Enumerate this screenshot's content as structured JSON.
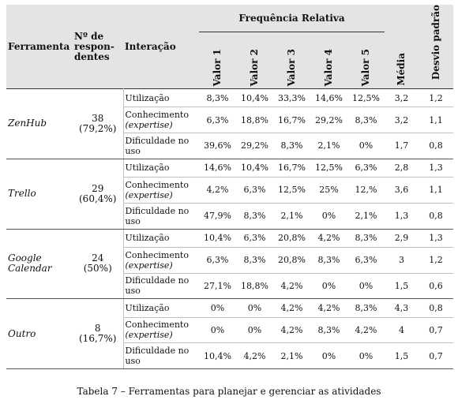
{
  "header": {
    "ferramenta": "Ferramenta",
    "respondentes": "Nº de respon-dentes",
    "interacao": "Interação",
    "frequencia": "Frequência Relativa",
    "valores": [
      "Valor 1",
      "Valor 2",
      "Valor 3",
      "Valor 4",
      "Valor 5"
    ],
    "media": "Média",
    "desvio": "Desvio padrão"
  },
  "interactions": {
    "utilizacao": "Utilização",
    "conhecimento": "Conhecimento",
    "expertise": "(expertise)",
    "dificuldade": "Dificuldade no uso"
  },
  "groups": [
    {
      "tool": "ZenHub",
      "count": "38",
      "pct": "(79,2%)",
      "rows": [
        [
          "8,3%",
          "10,4%",
          "33,3%",
          "14,6%",
          "12,5%",
          "3,2",
          "1,2"
        ],
        [
          "6,3%",
          "18,8%",
          "16,7%",
          "29,2%",
          "8,3%",
          "3,2",
          "1,1"
        ],
        [
          "39,6%",
          "29,2%",
          "8,3%",
          "2,1%",
          "0%",
          "1,7",
          "0,8"
        ]
      ]
    },
    {
      "tool": "Trello",
      "count": "29",
      "pct": "(60,4%)",
      "rows": [
        [
          "14,6%",
          "10,4%",
          "16,7%",
          "12,5%",
          "6,3%",
          "2,8",
          "1,3"
        ],
        [
          "4,2%",
          "6,3%",
          "12,5%",
          "25%",
          "12,%",
          "3,6",
          "1,1"
        ],
        [
          "47,9%",
          "8,3%",
          "2,1%",
          "0%",
          "2,1%",
          "1,3",
          "0,8"
        ]
      ]
    },
    {
      "tool": "Google Calendar",
      "count": "24",
      "pct": "(50%)",
      "rows": [
        [
          "10,4%",
          "6,3%",
          "20,8%",
          "4,2%",
          "8,3%",
          "2,9",
          "1,3"
        ],
        [
          "6,3%",
          "8,3%",
          "20,8%",
          "8,3%",
          "6,3%",
          "3",
          "1,2"
        ],
        [
          "27,1%",
          "18,8%",
          "4,2%",
          "0%",
          "0%",
          "1,5",
          "0,6"
        ]
      ]
    },
    {
      "tool": "Outro",
      "count": "8",
      "pct": "(16,7%)",
      "rows": [
        [
          "0%",
          "0%",
          "4,2%",
          "4,2%",
          "8,3%",
          "4,3",
          "0,8"
        ],
        [
          "0%",
          "0%",
          "4,2%",
          "8,3%",
          "4,2%",
          "4",
          "0,7"
        ],
        [
          "10,4%",
          "4,2%",
          "2,1%",
          "0%",
          "0%",
          "1,5",
          "0,7"
        ]
      ]
    }
  ],
  "caption": "Tabela 7 – Ferramentas para planejar e gerenciar as atividades"
}
